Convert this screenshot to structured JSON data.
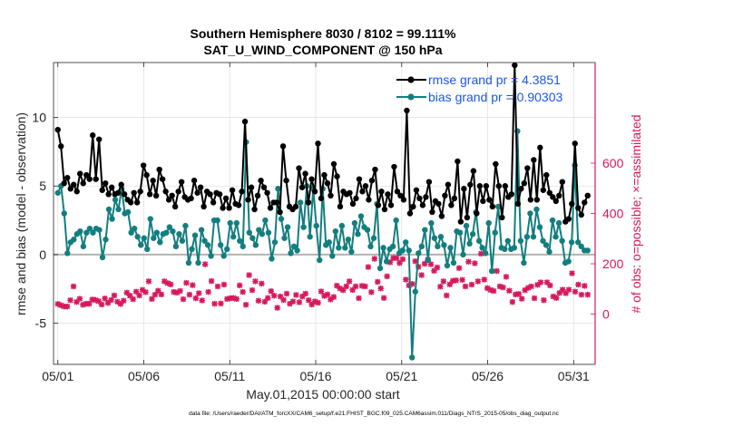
{
  "chart_data": {
    "type": "line",
    "title": "Southern Hemisphere 8030 / 8102 = 99.111%",
    "subtitle": "SAT_U_WIND_COMPONENT @ 150 hPa",
    "xlabel": "May.01,2015 00:00:00 start",
    "ylabel": "rmse and bias (model - observation)",
    "ylabel_right": "# of obs: o=possible; ×=assimilated",
    "footnote": "data file: /Users/raeder/DAI/ATM_forcXX/CAM6_setup/f.e21.FHIST_BGC.f09_025.CAM6assim.011/Diags_NTrS_2015-05/obs_diag_output.nc",
    "xlim": [
      0.75,
      32.25
    ],
    "ylim": [
      -8.0,
      14.0
    ],
    "ylim_right": [
      -200,
      1000
    ],
    "xticks": [
      1,
      6,
      11,
      16,
      21,
      26,
      31
    ],
    "xtick_labels": [
      "05/01",
      "05/06",
      "05/11",
      "05/16",
      "05/21",
      "05/26",
      "05/31"
    ],
    "yticks": [
      -5,
      0,
      5,
      10
    ],
    "ytick_labels": [
      "-5",
      "0",
      "5",
      "10"
    ],
    "yticks_right": [
      0,
      200,
      400,
      600
    ],
    "ytick_labels_right": [
      "0",
      "200",
      "400",
      "600"
    ],
    "grid": true,
    "legend": "top-right",
    "zero_line": 0,
    "series": [
      {
        "name": "rmse grand pr = 4.3851",
        "color": "#000000",
        "axis": "left",
        "values": [
          9.1,
          7.9,
          5.2,
          5.6,
          4.8,
          5.1,
          4.6,
          5.9,
          5.2,
          5.8,
          5.5,
          8.7,
          5.5,
          8.4,
          4.7,
          5.2,
          4.4,
          4.9,
          4.4,
          4.5,
          5.1,
          4.4,
          4.0,
          3.8,
          4.5,
          3.8,
          4.6,
          6.5,
          5.8,
          4.4,
          5.4,
          4.3,
          6.2,
          5.5,
          4.6,
          4.0,
          4.3,
          3.5,
          4.6,
          5.3,
          4.2,
          4.0,
          4.1,
          5.4,
          4.5,
          4.9,
          3.5,
          4.6,
          4.4,
          3.8,
          4.5,
          4.4,
          3.4,
          4.1,
          3.4,
          4.7,
          3.7,
          3.6,
          4.6,
          9.7,
          4.0,
          4.9,
          3.3,
          4.3,
          5.4,
          4.9,
          4.5,
          3.4,
          3.8,
          3.8,
          3.1,
          7.9,
          5.4,
          3.5,
          3.3,
          3.5,
          6.3,
          4.9,
          5.9,
          3.8,
          5.5,
          4.6,
          8.1,
          4.1,
          5.8,
          5.2,
          4.3,
          6.6,
          5.7,
          3.5,
          4.6,
          4.4,
          4.5,
          3.7,
          4.1,
          5.5,
          4.6,
          5.0,
          4.0,
          5.4,
          6.2,
          3.6,
          4.6,
          3.3,
          4.4,
          3.6,
          6.4,
          4.6,
          4.3,
          4.0,
          10.5,
          3.0,
          3.5,
          4.7,
          4.1,
          3.6,
          4.2,
          5.3,
          3.1,
          3.9,
          3.7,
          2.8,
          4.3,
          5.1,
          3.6,
          4.1,
          6.8,
          2.4,
          4.8,
          2.7,
          5.1,
          6.1,
          3.0,
          5.0,
          3.9,
          5.0,
          4.0,
          3.5,
          6.6,
          5.0,
          2.7,
          5.0,
          4.2,
          4.4,
          13.8,
          3.7,
          4.8,
          5.2,
          6.3,
          4.0,
          6.9,
          4.0,
          7.8,
          4.7,
          5.8,
          4.5,
          4.2,
          3.9,
          4.3,
          5.3,
          2.4,
          2.6,
          3.7,
          8.1,
          3.4,
          2.9,
          3.8,
          4.3
        ]
      },
      {
        "name": "bias grand pr = 0.90303",
        "color": "#137e7e",
        "axis": "left",
        "values": [
          4.5,
          5.0,
          3.0,
          0.1,
          0.9,
          1.1,
          1.5,
          1.7,
          0.6,
          1.6,
          1.9,
          1.6,
          1.9,
          1.8,
          -0.2,
          1.1,
          3.3,
          2.6,
          4.0,
          3.3,
          4.8,
          3.0,
          3.1,
          1.6,
          1.9,
          1.3,
          0.7,
          1.2,
          0.4,
          2.6,
          1.2,
          1.6,
          0.9,
          1.5,
          1.6,
          2.0,
          1.7,
          0.6,
          1.5,
          1.0,
          2.1,
          -0.6,
          0.4,
          1.4,
          -0.6,
          1.8,
          1.0,
          0.7,
          -0.1,
          2.5,
          2.5,
          0.7,
          -0.1,
          0.4,
          2.3,
          1.3,
          2.3,
          1.0,
          0.6,
          8.2,
          1.6,
          1.2,
          0.7,
          1.8,
          1.5,
          2.5,
          1.6,
          -0.3,
          0.9,
          4.8,
          2.6,
          1.2,
          2.0,
          0.1,
          0.6,
          0.3,
          3.8,
          2.0,
          5.0,
          1.3,
          4.8,
          2.1,
          -0.4,
          4.8,
          0.7,
          0.9,
          -0.1,
          1.7,
          0.5,
          2.1,
          0.5,
          1.1,
          0.2,
          2.3,
          1.5,
          2.8,
          2.0,
          1.8,
          0.6,
          1.2,
          3.7,
          -1.0,
          0.5,
          -0.5,
          0.4,
          0.6,
          2.5,
          0.1,
          0.3,
          0.9,
          0.3,
          -7.5,
          -2.7,
          0.1,
          0.6,
          1.8,
          -0.4,
          2.3,
          1.2,
          0.6,
          1.3,
          0.7,
          -0.8,
          0.5,
          -0.6,
          1.7,
          1.6,
          0.0,
          2.1,
          0.8,
          1.5,
          3.1,
          1.0,
          0.5,
          0.1,
          2.3,
          -1.2,
          1.6,
          3.5,
          0.5,
          0.4,
          1.0,
          0.4,
          0.5,
          9.0,
          1.0,
          -0.6,
          1.3,
          3.0,
          1.3,
          3.3,
          2.0,
          1.0,
          0.7,
          0.2,
          2.5,
          1.3,
          2.3,
          1.0,
          -0.6,
          -0.5,
          0.9,
          6.5,
          0.9,
          0.6,
          0.3,
          0.3
        ]
      },
      {
        "name": "possible",
        "color": "#d6195c",
        "marker": "o",
        "axis": "right",
        "values": [
          40,
          35,
          30,
          30,
          55,
          110,
          48,
          61,
          37,
          41,
          41,
          58,
          56,
          51,
          38,
          62,
          44,
          56,
          74,
          49,
          40,
          53,
          85,
          73,
          59,
          89,
          74,
          96,
          87,
          130,
          60,
          77,
          93,
          78,
          130,
          123,
          118,
          88,
          85,
          92,
          59,
          124,
          77,
          115,
          63,
          83,
          54,
          198,
          88,
          131,
          41,
          110,
          42,
          117,
          60,
          63,
          64,
          60,
          114,
          88,
          37,
          155,
          95,
          130,
          53,
          121,
          49,
          64,
          91,
          73,
          25,
          70,
          56,
          81,
          41,
          50,
          76,
          47,
          70,
          81,
          55,
          38,
          50,
          45,
          90,
          72,
          78,
          58,
          68,
          113,
          102,
          95,
          110,
          130,
          96,
          110,
          63,
          112,
          110,
          187,
          87,
          220,
          128,
          102,
          64,
          150,
          206,
          223,
          223,
          203,
          218,
          137,
          114,
          120,
          210,
          188,
          155,
          200,
          216,
          198,
          172,
          185,
          109,
          130,
          74,
          118,
          132,
          134,
          183,
          136,
          110,
          208,
          117,
          202,
          130,
          240,
          137,
          103,
          96,
          92,
          171,
          110,
          106,
          148,
          93,
          48,
          78,
          80,
          61,
          95,
          104,
          110,
          63,
          116,
          126,
          55,
          126,
          114,
          70,
          64,
          84,
          97,
          83,
          97,
          162,
          89,
          117,
          77,
          112,
          77
        ]
      },
      {
        "name": "assimilated",
        "color": "#d6195c",
        "marker": "x",
        "axis": "right",
        "values": [
          40,
          35,
          30,
          30,
          55,
          110,
          48,
          61,
          37,
          41,
          41,
          58,
          56,
          51,
          38,
          62,
          44,
          56,
          74,
          49,
          40,
          53,
          85,
          73,
          59,
          89,
          74,
          96,
          87,
          130,
          60,
          77,
          93,
          78,
          130,
          123,
          118,
          88,
          85,
          92,
          59,
          124,
          77,
          115,
          63,
          83,
          54,
          198,
          88,
          131,
          41,
          110,
          42,
          117,
          60,
          63,
          64,
          60,
          114,
          88,
          37,
          155,
          95,
          130,
          53,
          121,
          49,
          64,
          91,
          73,
          25,
          70,
          56,
          81,
          41,
          50,
          76,
          47,
          70,
          81,
          55,
          38,
          50,
          45,
          90,
          72,
          78,
          58,
          68,
          113,
          102,
          95,
          110,
          130,
          96,
          110,
          63,
          112,
          110,
          187,
          87,
          220,
          128,
          102,
          64,
          150,
          206,
          223,
          223,
          203,
          218,
          137,
          114,
          120,
          210,
          188,
          155,
          200,
          216,
          198,
          172,
          185,
          109,
          130,
          74,
          118,
          132,
          134,
          183,
          136,
          110,
          208,
          117,
          202,
          130,
          240,
          137,
          103,
          96,
          92,
          171,
          110,
          106,
          148,
          93,
          48,
          78,
          80,
          61,
          95,
          104,
          110,
          63,
          116,
          126,
          55,
          126,
          114,
          70,
          64,
          84,
          97,
          83,
          97,
          162,
          89,
          117,
          77,
          112,
          77
        ]
      }
    ]
  }
}
